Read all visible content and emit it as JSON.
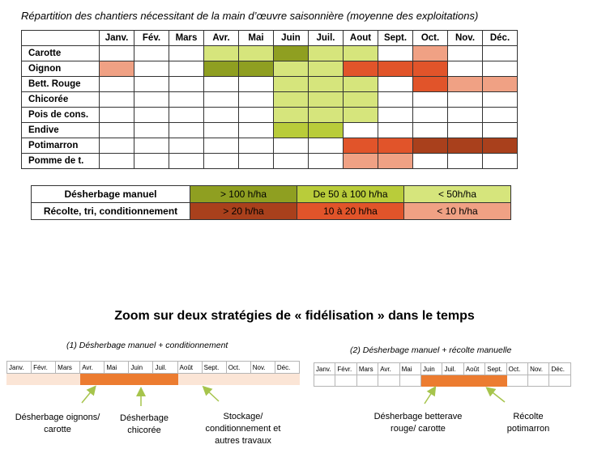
{
  "title": "Répartition des chantiers nécessitant  de la main d’œuvre saisonnière (moyenne des exploitations)",
  "months": [
    "Janv.",
    "Fév.",
    "Mars",
    "Avr.",
    "Mai",
    "Juin",
    "Juil.",
    "Aout",
    "Sept.",
    "Oct.",
    "Nov.",
    "Déc."
  ],
  "colors": {
    "w_high": "#8f9f21",
    "w_mid": "#b9cc3a",
    "w_low": "#d6e57c",
    "h_high": "#a9401c",
    "h_mid": "#e1542a",
    "h_low": "#f0a184",
    "zoom_bar": "#ec7c30",
    "zoom_bg": "#fbe5d6",
    "arrow": "#a6c44c"
  },
  "crops": [
    {
      "name": "Carotte",
      "cells": [
        "",
        "",
        "",
        "w_low",
        "w_low",
        "w_high",
        "w_low",
        "w_low",
        "",
        "h_low",
        "",
        ""
      ]
    },
    {
      "name": "Oignon",
      "cells": [
        "h_low",
        "",
        "",
        "w_high",
        "w_high",
        "w_low",
        "w_low",
        "h_mid",
        "h_mid",
        "h_mid",
        "",
        ""
      ]
    },
    {
      "name": "Bett. Rouge",
      "cells": [
        "",
        "",
        "",
        "",
        "",
        "w_low",
        "w_low",
        "w_low",
        "",
        "h_mid",
        "h_low",
        "h_low"
      ]
    },
    {
      "name": "Chicorée",
      "cells": [
        "",
        "",
        "",
        "",
        "",
        "w_low",
        "w_low",
        "w_low",
        "",
        "",
        "",
        ""
      ]
    },
    {
      "name": "Pois de cons.",
      "cells": [
        "",
        "",
        "",
        "",
        "",
        "w_low",
        "w_low",
        "w_low",
        "",
        "",
        "",
        ""
      ]
    },
    {
      "name": "Endive",
      "cells": [
        "",
        "",
        "",
        "",
        "",
        "w_mid",
        "w_mid",
        "",
        "",
        "",
        "",
        ""
      ]
    },
    {
      "name": "Potimarron",
      "cells": [
        "",
        "",
        "",
        "",
        "",
        "",
        "",
        "h_mid",
        "h_mid",
        "h_high",
        "h_high",
        "h_high"
      ]
    },
    {
      "name": "Pomme de t.",
      "cells": [
        "",
        "",
        "",
        "",
        "",
        "",
        "",
        "h_low",
        "h_low",
        "",
        "",
        ""
      ]
    }
  ],
  "legend": [
    {
      "label": "Désherbage manuel",
      "items": [
        {
          "text": "> 100 h/ha",
          "color": "w_high"
        },
        {
          "text": "De 50 à 100 h/ha",
          "color": "w_mid"
        },
        {
          "text": "< 50h/ha",
          "color": "w_low"
        }
      ]
    },
    {
      "label": "Récolte, tri, conditionnement",
      "items": [
        {
          "text": "> 20 h/ha",
          "color": "h_high"
        },
        {
          "text": "10 à 20 h/ha",
          "color": "h_mid"
        },
        {
          "text": "< 10 h/ha",
          "color": "h_low"
        }
      ]
    }
  ],
  "zoom_title": "Zoom sur deux stratégies de « fidélisation » dans le temps",
  "strategy1": {
    "title": "(1) Désherbage manuel + conditionnement",
    "months": [
      "Janv.",
      "Févr.",
      "Mars",
      "Avr.",
      "Mai",
      "Juin",
      "Juil.",
      "Août",
      "Sept.",
      "Oct.",
      "Nov.",
      "Déc."
    ],
    "cells": [
      "bg",
      "bg",
      "bg",
      "bar",
      "bar",
      "bar",
      "bar",
      "bg",
      "bg",
      "bg",
      "bg",
      "bg"
    ],
    "notes": [
      {
        "lines": [
          "Désherbage oignons/",
          "carotte"
        ]
      },
      {
        "lines": [
          "Désherbage",
          "chicorée"
        ]
      },
      {
        "lines": [
          "Stockage/",
          "conditionnement et",
          "autres travaux"
        ]
      }
    ]
  },
  "strategy2": {
    "title": "(2) Désherbage manuel + récolte manuelle",
    "months": [
      "Janv.",
      "Févr.",
      "Mars",
      "Avr.",
      "Mai",
      "Juin",
      "Juil.",
      "Août",
      "Sept.",
      "Oct.",
      "Nov.",
      "Déc."
    ],
    "cells": [
      "",
      "",
      "",
      "",
      "",
      "bar",
      "bar",
      "bar",
      "bar",
      "",
      "",
      ""
    ],
    "notes": [
      {
        "lines": [
          "Désherbage  betterave",
          "rouge/ carotte"
        ]
      },
      {
        "lines": [
          "Récolte",
          "potimarron"
        ]
      }
    ]
  }
}
